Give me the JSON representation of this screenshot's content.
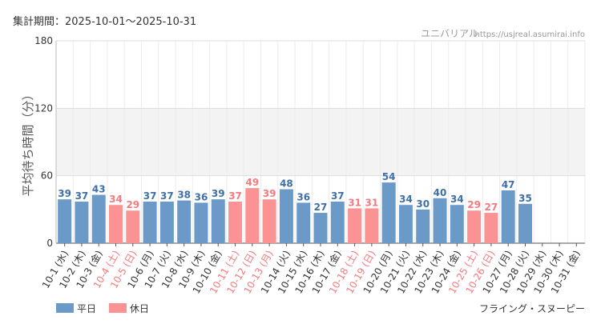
{
  "header": {
    "period_label": "集計期間：2025-10-01～2025-10-31",
    "site_name": "ユニバリアル",
    "site_url": "https://usjreal.asumirai.info"
  },
  "footer": {
    "attraction_name": "フライング・スヌーピー"
  },
  "colors": {
    "weekday": "#6b9ac8",
    "holiday": "#fb9294",
    "weekday_text": "#3e6fa8",
    "holiday_text": "#f47a7d",
    "band": "#f3f3f3",
    "grid": "#dddddd"
  },
  "chart_data": {
    "type": "bar",
    "title": "",
    "ylabel": "平均待ち時間（分）",
    "xlabel": "",
    "ylim": [
      0,
      180
    ],
    "yticks": [
      0,
      60,
      120,
      180
    ],
    "shaded_band": [
      60,
      120
    ],
    "categories": [
      "10-1 (水)",
      "10-2 (木)",
      "10-3 (金)",
      "10-4 (土)",
      "10-5 (日)",
      "10-6 (月)",
      "10-7 (火)",
      "10-8 (水)",
      "10-9 (木)",
      "10-10 (金)",
      "10-11 (土)",
      "10-12 (日)",
      "10-13 (月)",
      "10-14 (火)",
      "10-15 (水)",
      "10-16 (木)",
      "10-17 (金)",
      "10-18 (土)",
      "10-19 (日)",
      "10-20 (月)",
      "10-21 (火)",
      "10-22 (水)",
      "10-23 (木)",
      "10-24 (金)",
      "10-25 (土)",
      "10-26 (日)",
      "10-27 (月)",
      "10-28 (火)",
      "10-29 (水)",
      "10-30 (木)",
      "10-31 (金)"
    ],
    "values": [
      39,
      37,
      43,
      34,
      29,
      37,
      37,
      38,
      36,
      39,
      37,
      49,
      39,
      48,
      36,
      27,
      37,
      31,
      31,
      54,
      34,
      30,
      40,
      34,
      29,
      27,
      47,
      35,
      null,
      null,
      null
    ],
    "day_type": [
      "weekday",
      "weekday",
      "weekday",
      "holiday",
      "holiday",
      "weekday",
      "weekday",
      "weekday",
      "weekday",
      "weekday",
      "holiday",
      "holiday",
      "holiday",
      "weekday",
      "weekday",
      "weekday",
      "weekday",
      "holiday",
      "holiday",
      "weekday",
      "weekday",
      "weekday",
      "weekday",
      "weekday",
      "holiday",
      "holiday",
      "weekday",
      "weekday",
      "weekday",
      "weekday",
      "weekday"
    ],
    "legend": [
      {
        "key": "weekday",
        "label": "平日"
      },
      {
        "key": "holiday",
        "label": "休日"
      }
    ],
    "legend_position": "bottom-left"
  }
}
